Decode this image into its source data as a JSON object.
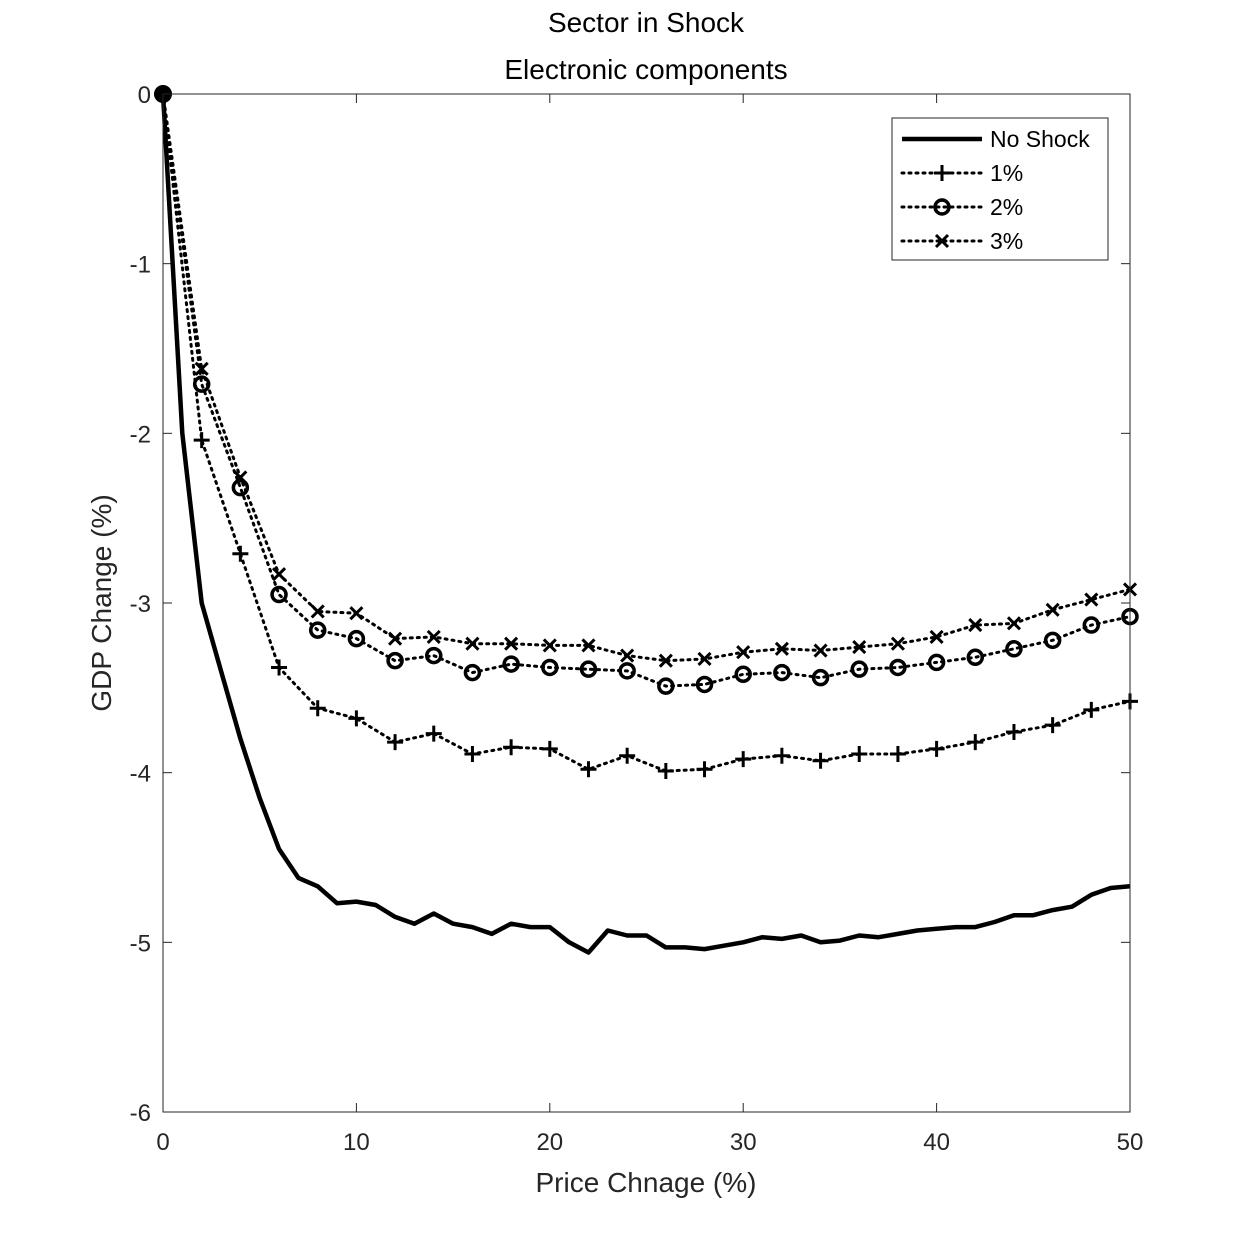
{
  "chart_data": {
    "type": "line",
    "title": "Sector in Shock",
    "subtitle": "Electronic components",
    "xlabel": "Price Chnage (%)",
    "ylabel": "GDP Change (%)",
    "xlim": [
      0,
      50
    ],
    "ylim": [
      -6,
      0
    ],
    "xticks": [
      "0",
      "10",
      "20",
      "30",
      "40",
      "50"
    ],
    "yticks": [
      "0",
      "-1",
      "-2",
      "-3",
      "-4",
      "-5",
      "-6"
    ],
    "grid": false,
    "legend_position": "top-right",
    "series": [
      {
        "name": "No Shock",
        "style": "solid",
        "marker": "none",
        "color": "#000000",
        "x": [
          0,
          1,
          2,
          3,
          4,
          5,
          6,
          7,
          8,
          9,
          10,
          11,
          12,
          13,
          14,
          15,
          16,
          17,
          18,
          19,
          20,
          21,
          22,
          23,
          24,
          25,
          26,
          27,
          28,
          29,
          30,
          31,
          32,
          33,
          34,
          35,
          36,
          37,
          38,
          39,
          40,
          41,
          42,
          43,
          44,
          45,
          46,
          47,
          48,
          49,
          50
        ],
        "values": [
          0,
          -2.0,
          -3.0,
          -3.4,
          -3.8,
          -4.15,
          -4.45,
          -4.62,
          -4.67,
          -4.77,
          -4.76,
          -4.78,
          -4.85,
          -4.89,
          -4.83,
          -4.89,
          -4.91,
          -4.95,
          -4.89,
          -4.91,
          -4.91,
          -5.0,
          -5.06,
          -4.93,
          -4.96,
          -4.96,
          -5.03,
          -5.03,
          -5.04,
          -5.02,
          -5.0,
          -4.97,
          -4.98,
          -4.96,
          -5.0,
          -4.99,
          -4.96,
          -4.97,
          -4.95,
          -4.93,
          -4.92,
          -4.91,
          -4.91,
          -4.88,
          -4.84,
          -4.84,
          -4.81,
          -4.79,
          -4.72,
          -4.68,
          -4.67
        ]
      },
      {
        "name": "1%",
        "style": "dotted",
        "marker": "plus",
        "color": "#000000",
        "x": [
          0,
          2,
          4,
          6,
          8,
          10,
          12,
          14,
          16,
          18,
          20,
          22,
          24,
          26,
          28,
          30,
          32,
          34,
          36,
          38,
          40,
          42,
          44,
          46,
          48,
          50
        ],
        "values": [
          0,
          -2.04,
          -2.71,
          -3.38,
          -3.62,
          -3.68,
          -3.82,
          -3.77,
          -3.89,
          -3.85,
          -3.86,
          -3.98,
          -3.9,
          -3.99,
          -3.98,
          -3.92,
          -3.9,
          -3.93,
          -3.89,
          -3.89,
          -3.86,
          -3.82,
          -3.76,
          -3.72,
          -3.63,
          -3.58
        ]
      },
      {
        "name": "2%",
        "style": "dotted",
        "marker": "circle",
        "color": "#000000",
        "x": [
          0,
          2,
          4,
          6,
          8,
          10,
          12,
          14,
          16,
          18,
          20,
          22,
          24,
          26,
          28,
          30,
          32,
          34,
          36,
          38,
          40,
          42,
          44,
          46,
          48,
          50
        ],
        "values": [
          0,
          -1.71,
          -2.32,
          -2.95,
          -3.16,
          -3.21,
          -3.34,
          -3.31,
          -3.41,
          -3.36,
          -3.38,
          -3.39,
          -3.4,
          -3.49,
          -3.48,
          -3.42,
          -3.41,
          -3.44,
          -3.39,
          -3.38,
          -3.35,
          -3.32,
          -3.27,
          -3.22,
          -3.13,
          -3.08
        ]
      },
      {
        "name": "3%",
        "style": "dotted",
        "marker": "x",
        "color": "#000000",
        "x": [
          0,
          2,
          4,
          6,
          8,
          10,
          12,
          14,
          16,
          18,
          20,
          22,
          24,
          26,
          28,
          30,
          32,
          34,
          36,
          38,
          40,
          42,
          44,
          46,
          48,
          50
        ],
        "values": [
          0,
          -1.62,
          -2.26,
          -2.83,
          -3.05,
          -3.06,
          -3.21,
          -3.2,
          -3.24,
          -3.24,
          -3.25,
          -3.25,
          -3.31,
          -3.34,
          -3.33,
          -3.29,
          -3.27,
          -3.28,
          -3.26,
          -3.24,
          -3.2,
          -3.13,
          -3.12,
          -3.04,
          -2.98,
          -2.92
        ]
      }
    ]
  }
}
